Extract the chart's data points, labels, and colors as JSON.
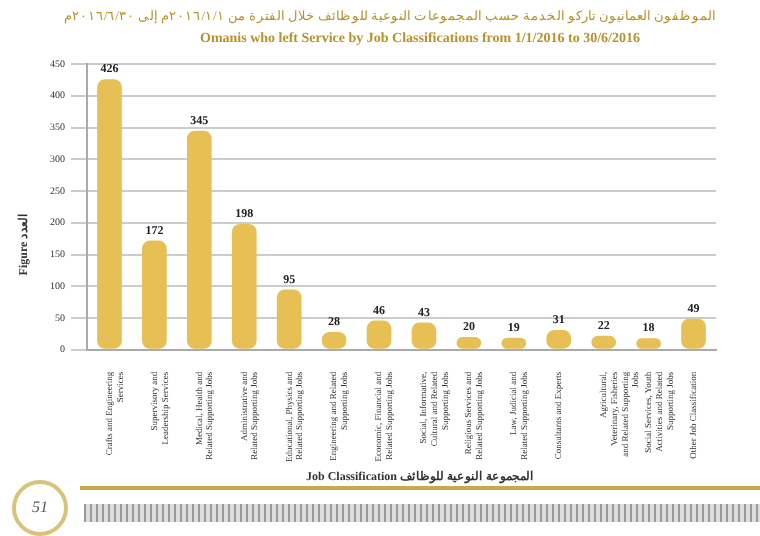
{
  "chart_data": {
    "type": "bar",
    "title": "الموظفون العمانيون تاركو الخدمة حسب المجموعات النوعية للوظائف خلال الفترة من ٢٠١٦/١/١م إلى ٢٠١٦/٦/٣٠م",
    "subtitle": "Omanis who left Service by Job Classifications from 1/1/2016 to 30/6/2016",
    "xlabel": "Job Classification   المجموعة النوعية للوظائف",
    "ylabel": "Figure   العدد",
    "categories": [
      "Crafts and Engineering Services",
      "Supervisory and Leadership Services",
      "Medical, Health and Related Supporting Jobs",
      "Administrative and Related Supporting Jobs",
      "Educational, Physics and Related Supporting Jobs",
      "Engineering and Related Supporting Jobs",
      "Economic, Financial and Related Supporting Jobs",
      "Social, Informative, Cultural and Related Supporting Jobs",
      "Religious Services and Related Supporting Jobs",
      "Law, Judicial and Related Supporting Jobs",
      "Consultants and Experts",
      "Agricultural, Veterinary, Fisheries and Related Supporting Jobs",
      "Social Services, Youth Activities and Related Supporting Jobs",
      "Other Job Classification"
    ],
    "values": [
      426,
      172,
      345,
      198,
      95,
      28,
      46,
      43,
      20,
      19,
      31,
      22,
      18,
      49
    ],
    "color": "#e6bf55",
    "ylim": [
      0,
      450
    ],
    "yticks": [
      0,
      50,
      100,
      150,
      200,
      250,
      300,
      350,
      400,
      450
    ],
    "grid": "y",
    "data_labels": true,
    "annotations": [
      "51"
    ]
  }
}
